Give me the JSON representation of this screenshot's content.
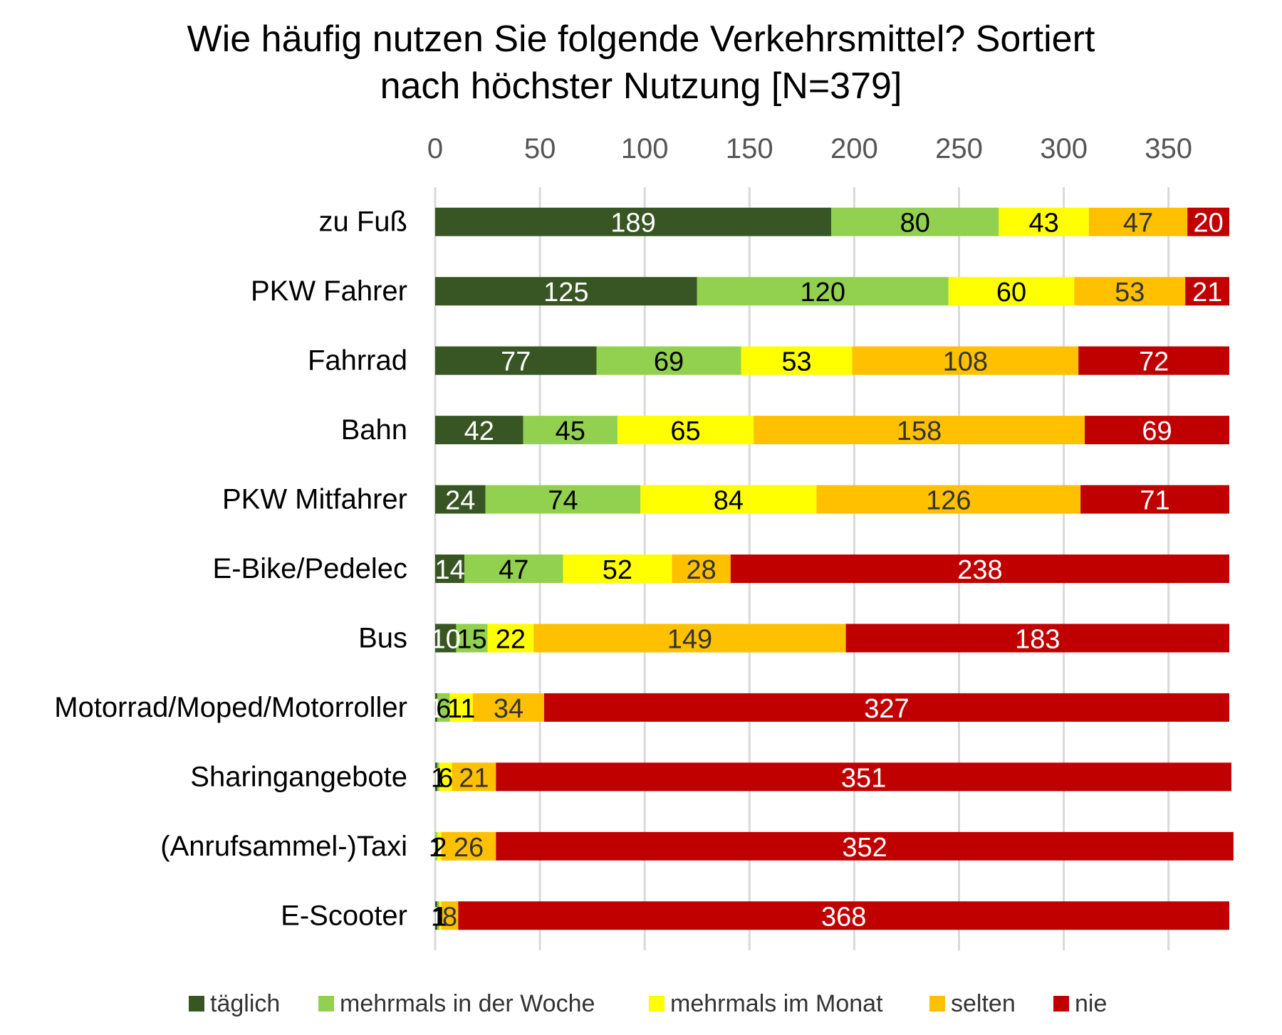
{
  "chart_data": {
    "type": "bar",
    "orientation": "horizontal",
    "stacked": true,
    "title_lines": [
      "Wie häufig nutzen Sie folgende Verkehrsmittel? Sortiert",
      "nach höchster Nutzung [N=379]"
    ],
    "xlim": [
      0,
      379
    ],
    "xticks": [
      0,
      50,
      100,
      150,
      200,
      250,
      300,
      350
    ],
    "x_axis_position": "top",
    "grid": true,
    "legend_position": "bottom",
    "categories": [
      "zu Fuß",
      "PKW Fahrer",
      "Fahrrad",
      "Bahn",
      "PKW Mitfahrer",
      "E-Bike/Pedelec",
      "Bus",
      "Motorrad/Moped/Motorroller",
      "Sharingangebote",
      "(Anrufsammel-)Taxi",
      "E-Scooter"
    ],
    "series": [
      {
        "name": "täglich",
        "color": "#375623",
        "label_color": "#ffffff",
        "values": [
          189,
          125,
          77,
          42,
          24,
          14,
          10,
          1,
          1,
          0,
          1
        ]
      },
      {
        "name": "mehrmals in der Woche",
        "color": "#92d050",
        "label_color": "#000000",
        "values": [
          80,
          120,
          69,
          45,
          74,
          47,
          15,
          6,
          1,
          1,
          1
        ]
      },
      {
        "name": "mehrmals im Monat",
        "color": "#ffff00",
        "label_color": "#000000",
        "values": [
          43,
          60,
          53,
          65,
          84,
          52,
          22,
          11,
          6,
          2,
          1
        ]
      },
      {
        "name": "selten",
        "color": "#ffc000",
        "label_color": "#333333",
        "values": [
          47,
          53,
          108,
          158,
          126,
          28,
          149,
          34,
          21,
          26,
          8
        ]
      },
      {
        "name": "nie",
        "color": "#c00000",
        "label_color": "#ffffff",
        "values": [
          20,
          21,
          72,
          69,
          71,
          238,
          183,
          327,
          351,
          352,
          368
        ]
      }
    ]
  }
}
